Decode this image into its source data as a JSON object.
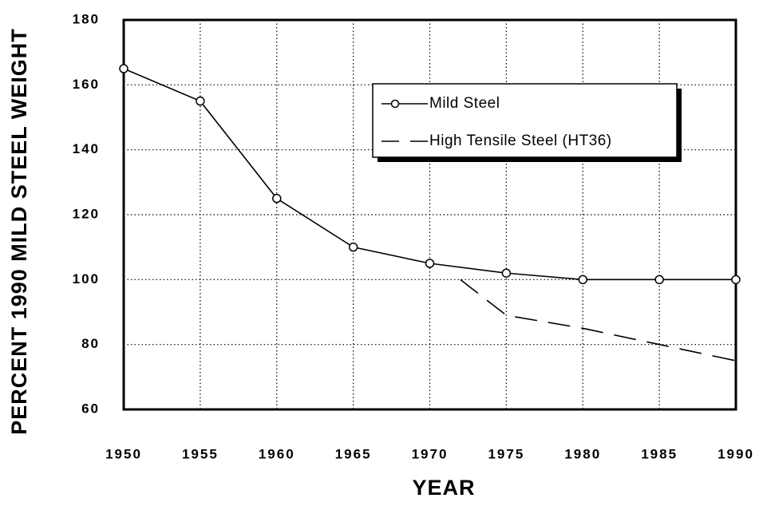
{
  "chart_data": {
    "type": "line",
    "xlabel": "YEAR",
    "ylabel": "PERCENT 1990 MILD STEEL WEIGHT",
    "xlim": [
      1950,
      1990
    ],
    "xticks": [
      1950,
      1955,
      1960,
      1965,
      1970,
      1975,
      1980,
      1985,
      1990
    ],
    "ylim": [
      60,
      180
    ],
    "yticks": [
      60,
      80,
      100,
      120,
      140,
      160,
      180
    ],
    "grid": true,
    "series": [
      {
        "name": "Mild Steel",
        "color": "#000000",
        "style": "solid",
        "marker": "circle",
        "x": [
          1950,
          1955,
          1960,
          1965,
          1970,
          1975,
          1980,
          1985,
          1990
        ],
        "values": [
          165,
          155,
          125,
          110,
          105,
          102,
          100,
          100,
          100
        ]
      },
      {
        "name": "High Tensile Steel (HT36)",
        "color": "#000000",
        "style": "dashed",
        "x": [
          1972,
          1975,
          1980,
          1985,
          1990
        ],
        "values": [
          100,
          89,
          85,
          80,
          75
        ]
      }
    ]
  }
}
